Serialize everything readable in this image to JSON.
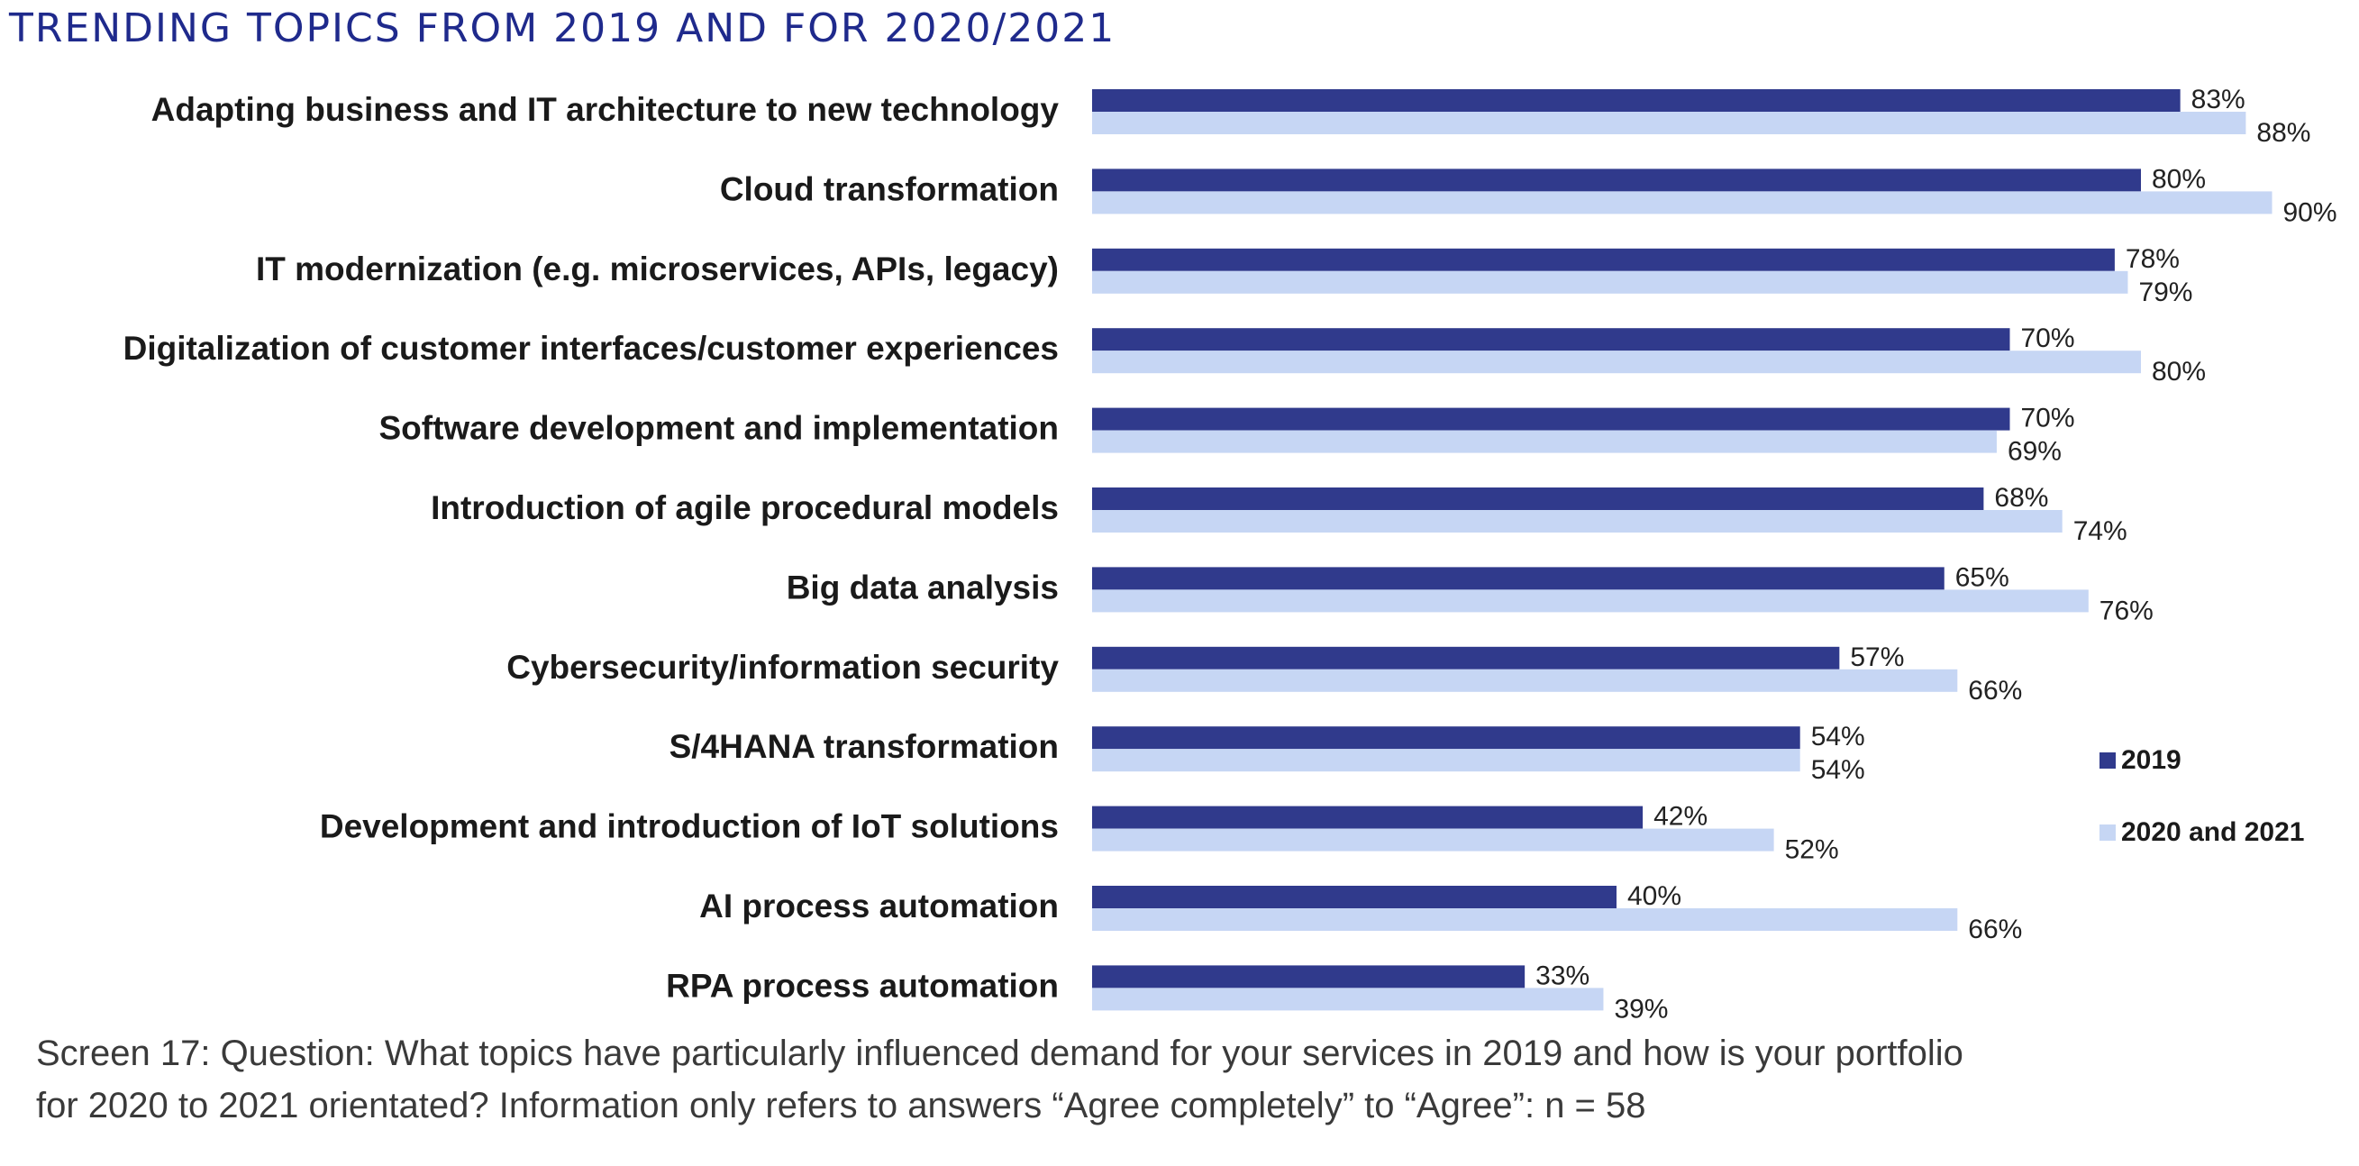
{
  "chart_data": {
    "type": "bar",
    "orientation": "horizontal",
    "title": "TRENDING TOPICS FROM 2019 AND FOR 2020/2021",
    "categories": [
      "Adapting business and IT architecture to new technology",
      "Cloud transformation",
      "IT modernization (e.g. microservices, APIs, legacy)",
      "Digitalization of customer interfaces/customer experiences",
      "Software development and implementation",
      "Introduction of agile procedural models",
      "Big data analysis",
      "Cybersecurity/information security",
      "S/4HANA transformation",
      "Development and introduction of IoT solutions",
      "AI process automation",
      "RPA process automation"
    ],
    "series": [
      {
        "name": "2019",
        "color": "#303a8c",
        "values": [
          83,
          80,
          78,
          70,
          70,
          68,
          65,
          57,
          54,
          42,
          40,
          33
        ]
      },
      {
        "name": "2020 and 2021",
        "color": "#c6d6f4",
        "values": [
          88,
          90,
          79,
          80,
          69,
          74,
          76,
          66,
          54,
          52,
          66,
          39
        ]
      }
    ],
    "value_suffix": "%",
    "xlim": [
      0,
      100
    ],
    "grid": false,
    "legend_position": "right"
  },
  "footnote": {
    "line1": "Screen 17: Question: What topics have particularly influenced demand for your services in 2019 and how is your portfolio",
    "line2": "for 2020 to 2021 orientated? Information only refers to answers “Agree completely” to “Agree”: n = 58"
  }
}
